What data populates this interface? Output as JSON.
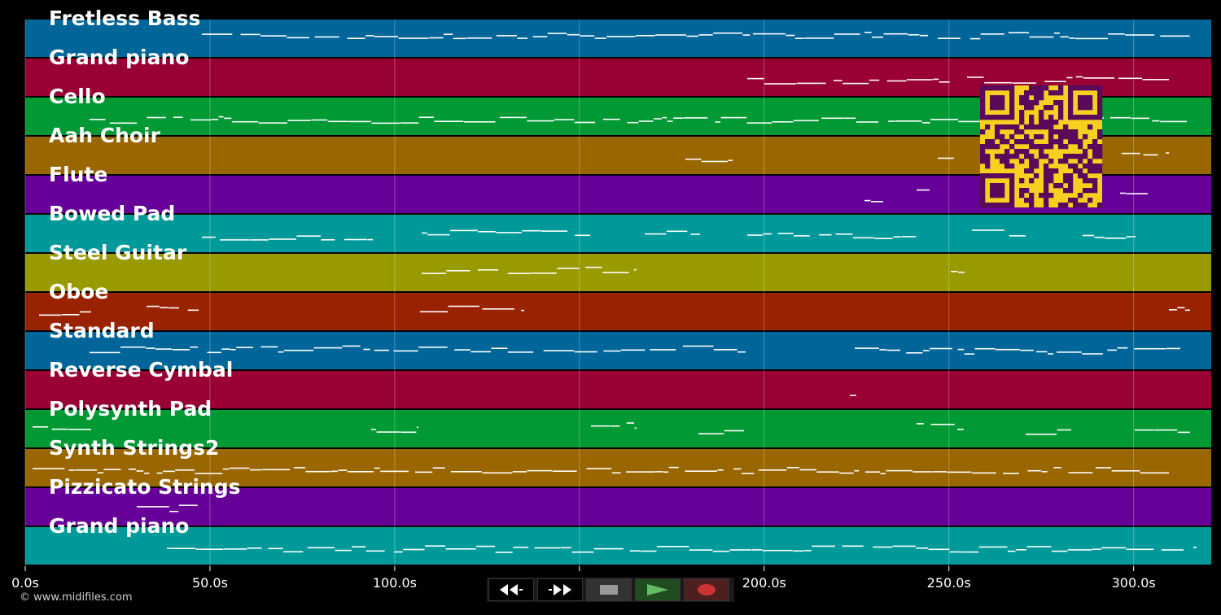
{
  "tracks": [
    {
      "name": "Fretless Bass",
      "color": "#006699"
    },
    {
      "name": "Grand piano",
      "color": "#990033"
    },
    {
      "name": "Cello",
      "color": "#009933"
    },
    {
      "name": "Aah Choir",
      "color": "#996600"
    },
    {
      "name": "Flute",
      "color": "#660099"
    },
    {
      "name": "Bowed Pad",
      "color": "#009999"
    },
    {
      "name": "Steel Guitar",
      "color": "#999900"
    },
    {
      "name": "Oboe",
      "color": "#992200"
    },
    {
      "name": "Standard",
      "color": "#006699"
    },
    {
      "name": "Reverse Cymbal",
      "color": "#990033"
    },
    {
      "name": "Polysynth Pad",
      "color": "#009933"
    },
    {
      "name": "Synth Strings2",
      "color": "#996600"
    },
    {
      "name": "Pizzicato Strings",
      "color": "#660099"
    },
    {
      "name": "Grand piano",
      "color": "#009999"
    }
  ],
  "time_axis": {
    "min_seconds": 0,
    "max_seconds": 321,
    "ticks": [
      {
        "value": 0,
        "label": "0.0s"
      },
      {
        "value": 50,
        "label": "50.0s"
      },
      {
        "value": 100,
        "label": "100.0s"
      },
      {
        "value": 150,
        "label": "150.0s"
      },
      {
        "value": 200,
        "label": "200.0s"
      },
      {
        "value": 250,
        "label": "250.0s"
      },
      {
        "value": 300,
        "label": "300.0s"
      }
    ]
  },
  "copyright": "© www.midifiles.com",
  "qr": {
    "fg": "#5a0a5a",
    "bg": "#f5d020"
  },
  "transport": {
    "buttons": [
      {
        "name": "rewind-button",
        "icon": "rewind-icon"
      },
      {
        "name": "fast-forward-button",
        "icon": "fast-forward-icon"
      },
      {
        "name": "stop-button",
        "icon": "stop-icon",
        "color": "#999999"
      },
      {
        "name": "play-button",
        "icon": "play-icon",
        "color": "#66bb66"
      },
      {
        "name": "record-button",
        "icon": "record-icon",
        "color": "#cc3333"
      }
    ]
  }
}
